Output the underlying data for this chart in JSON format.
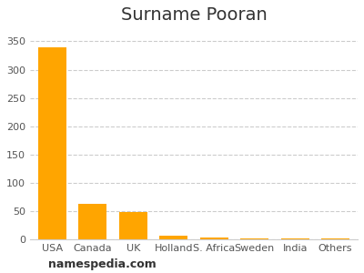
{
  "title": "Surname Pooran",
  "categories": [
    "USA",
    "Canada",
    "UK",
    "Holland",
    "S. Africa",
    "Sweden",
    "India",
    "Others"
  ],
  "values": [
    340,
    63,
    49,
    7,
    3,
    2,
    2,
    2
  ],
  "bar_color": "#FFA500",
  "ylim": [
    0,
    370
  ],
  "yticks": [
    0,
    50,
    100,
    150,
    200,
    250,
    300,
    350
  ],
  "grid_color": "#cccccc",
  "background_color": "#ffffff",
  "title_fontsize": 14,
  "tick_fontsize": 8,
  "xlabel_fontsize": 8,
  "watermark": "namespedia.com",
  "watermark_fontsize": 9
}
